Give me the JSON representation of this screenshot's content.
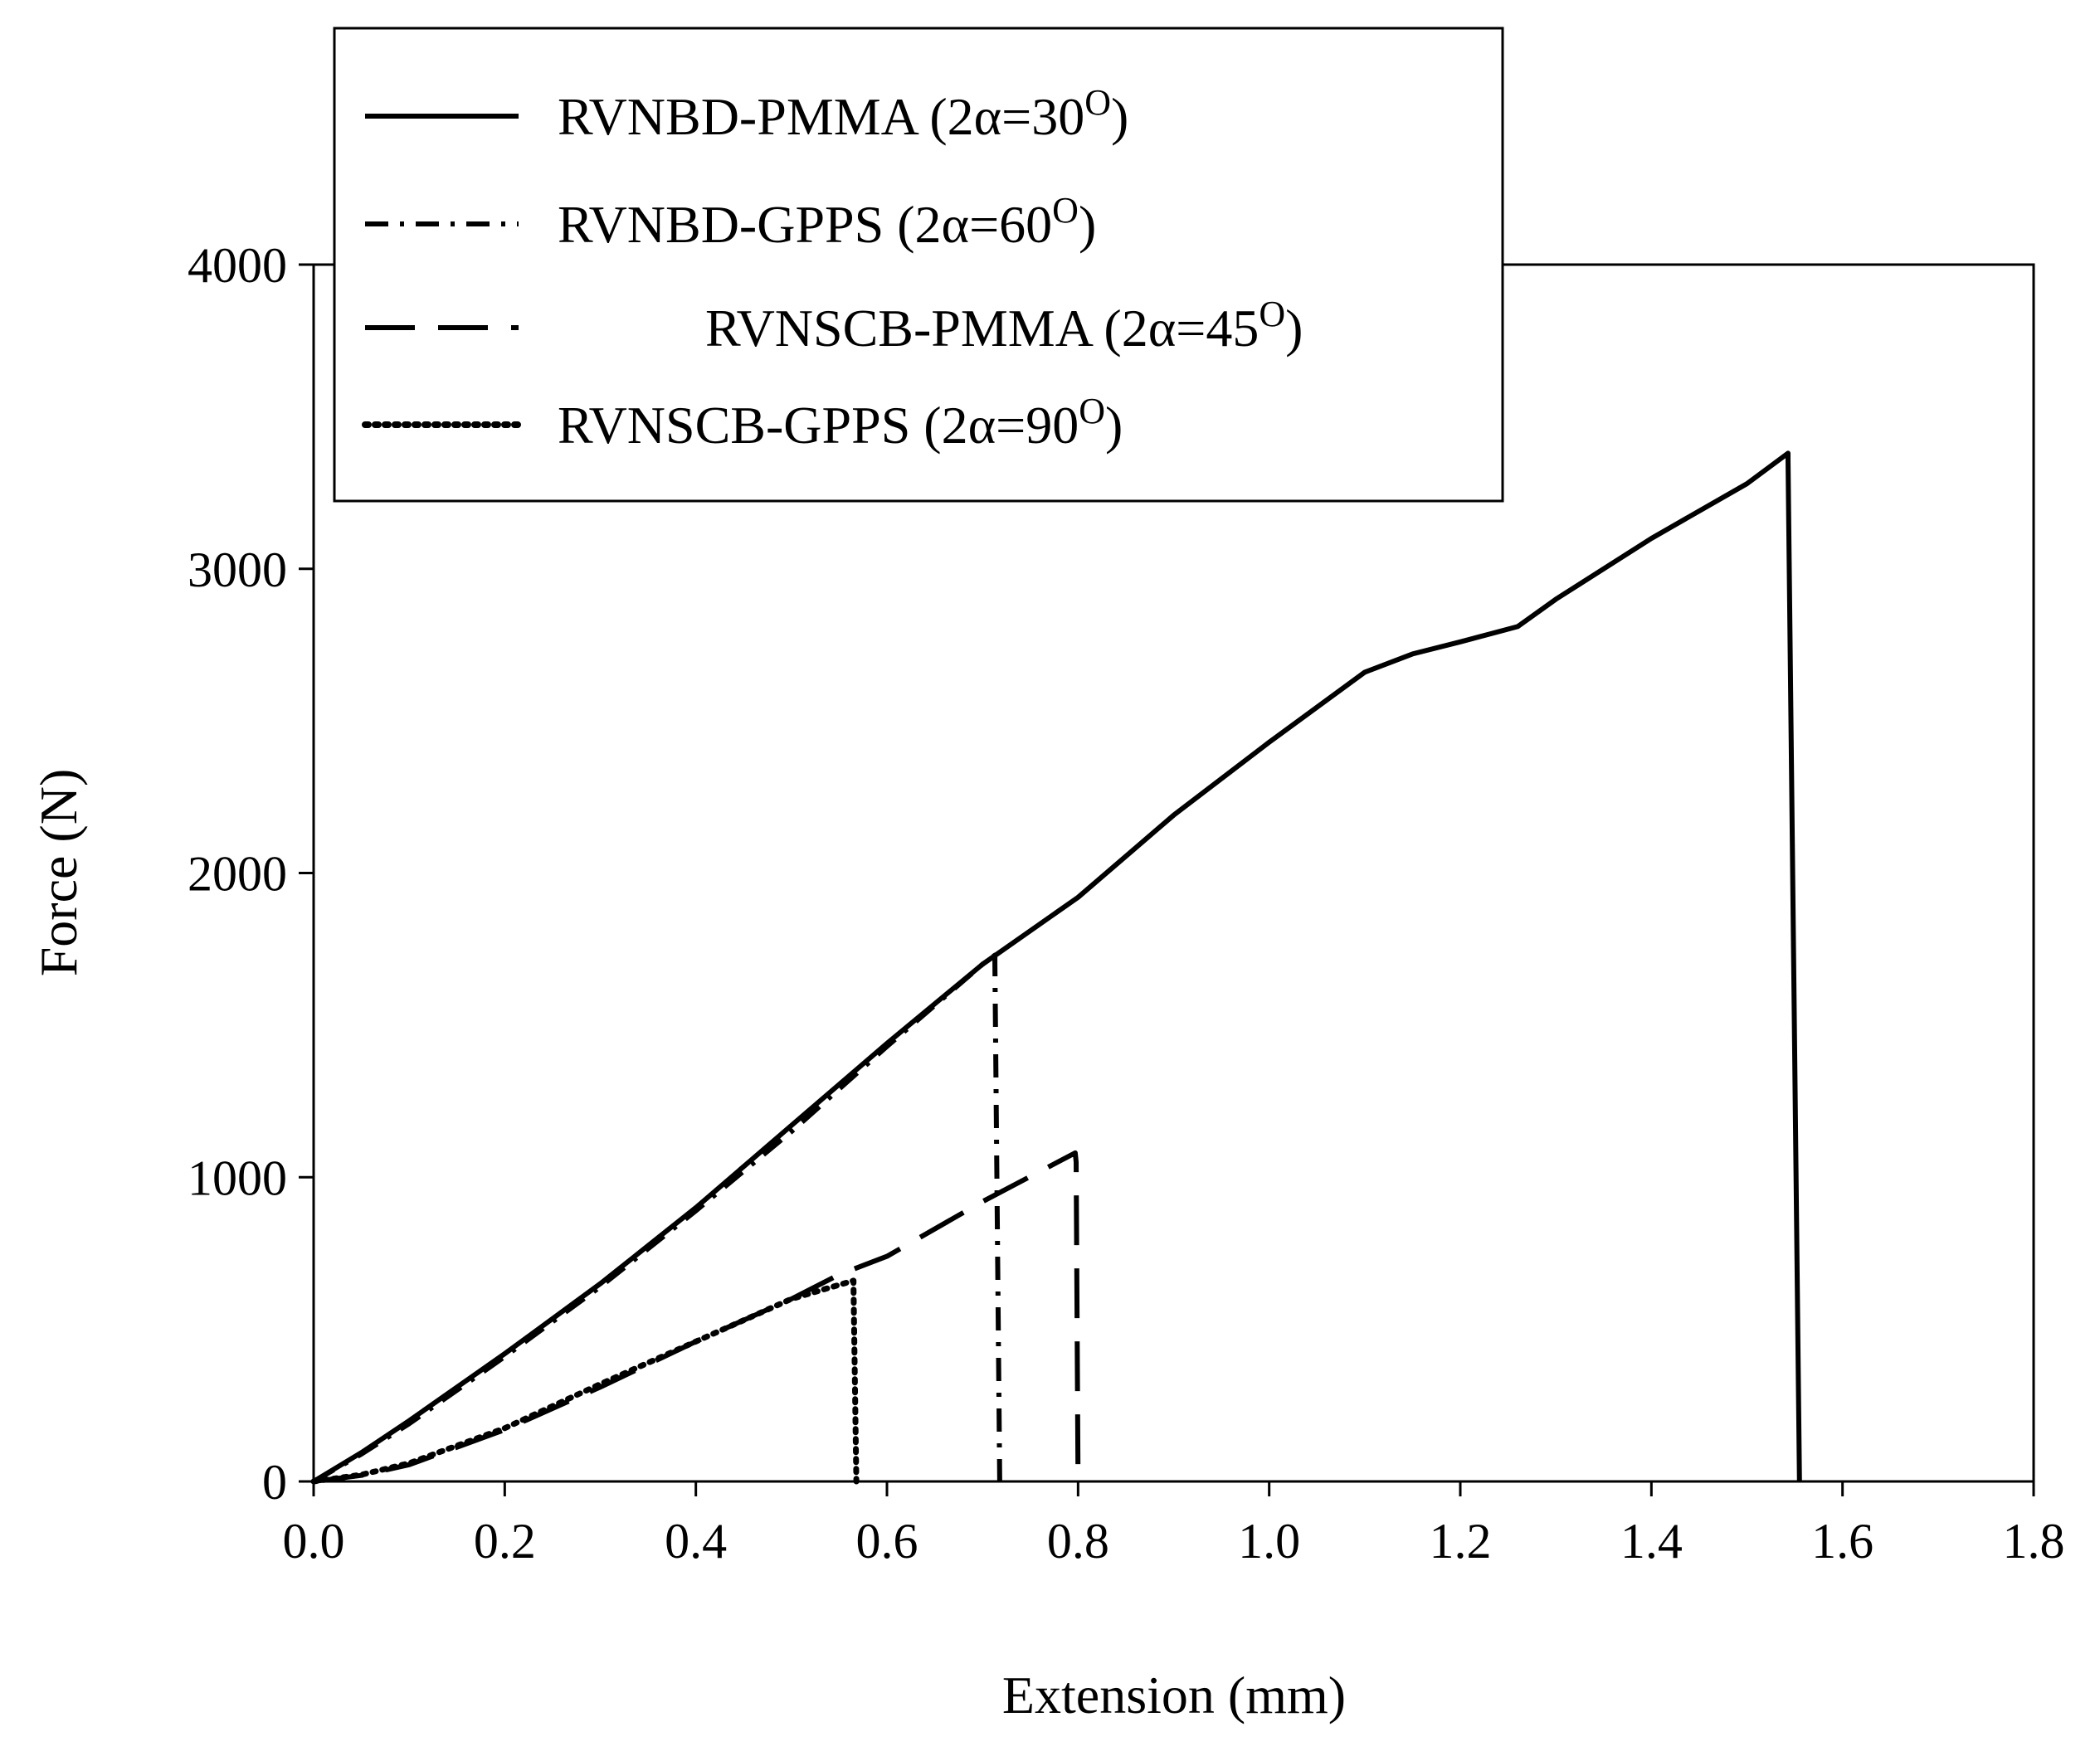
{
  "chart_data": {
    "type": "line",
    "title": "",
    "xlabel": "Extension (mm)",
    "ylabel": "Force (N)",
    "xlim": [
      0,
      1.8
    ],
    "ylim": [
      0,
      4000
    ],
    "x_ticks": [
      0.0,
      0.2,
      0.4,
      0.6,
      0.8,
      1.0,
      1.2,
      1.4,
      1.6,
      1.8
    ],
    "x_tick_labels": [
      "0.0",
      "0.2",
      "0.4",
      "0.6",
      "0.8",
      "1.0",
      "1.2",
      "1.4",
      "1.6",
      "1.8"
    ],
    "y_ticks": [
      0,
      1000,
      2000,
      3000,
      4000
    ],
    "y_tick_labels": [
      "0",
      "1000",
      "2000",
      "3000",
      "4000"
    ],
    "grid": false,
    "legend_position": "top-left",
    "series": [
      {
        "name": "RVNBD-PMMA (2α=30",
        "sup": "O",
        "close": ")",
        "style": "solid",
        "points": [
          [
            0,
            0
          ],
          [
            0.05,
            95
          ],
          [
            0.1,
            200
          ],
          [
            0.2,
            420
          ],
          [
            0.3,
            650
          ],
          [
            0.4,
            900
          ],
          [
            0.5,
            1170
          ],
          [
            0.6,
            1440
          ],
          [
            0.7,
            1700
          ],
          [
            0.8,
            1920
          ],
          [
            0.9,
            2190
          ],
          [
            1.0,
            2430
          ],
          [
            1.1,
            2660
          ],
          [
            1.15,
            2720
          ],
          [
            1.2,
            2760
          ],
          [
            1.26,
            2810
          ],
          [
            1.3,
            2900
          ],
          [
            1.4,
            3100
          ],
          [
            1.5,
            3280
          ],
          [
            1.543,
            3380
          ],
          [
            1.543,
            3360
          ],
          [
            1.555,
            0
          ]
        ]
      },
      {
        "name": "RVNBD-GPPS (2α=60",
        "sup": "O",
        "close": ")",
        "style": "dashdot",
        "points": [
          [
            0,
            0
          ],
          [
            0.05,
            90
          ],
          [
            0.1,
            190
          ],
          [
            0.2,
            410
          ],
          [
            0.3,
            640
          ],
          [
            0.4,
            890
          ],
          [
            0.5,
            1150
          ],
          [
            0.6,
            1430
          ],
          [
            0.7,
            1700
          ],
          [
            0.713,
            1730
          ],
          [
            0.713,
            1700
          ],
          [
            0.718,
            0
          ]
        ]
      },
      {
        "name": "RVNSCB-PMMA (2α=45",
        "sup": "O",
        "close": ")",
        "style": "longdash",
        "points": [
          [
            0,
            0
          ],
          [
            0.05,
            20
          ],
          [
            0.1,
            55
          ],
          [
            0.2,
            170
          ],
          [
            0.3,
            310
          ],
          [
            0.4,
            460
          ],
          [
            0.5,
            600
          ],
          [
            0.55,
            680
          ],
          [
            0.6,
            740
          ],
          [
            0.7,
            920
          ],
          [
            0.797,
            1080
          ],
          [
            0.798,
            1050
          ],
          [
            0.8,
            0
          ]
        ]
      },
      {
        "name": "RVNSCB-GPPS (2α=90",
        "sup": "O",
        "close": ")",
        "style": "dotted",
        "points": [
          [
            0,
            0
          ],
          [
            0.05,
            22
          ],
          [
            0.1,
            60
          ],
          [
            0.2,
            175
          ],
          [
            0.3,
            320
          ],
          [
            0.4,
            460
          ],
          [
            0.5,
            600
          ],
          [
            0.565,
            660
          ],
          [
            0.565,
            640
          ],
          [
            0.568,
            0
          ]
        ]
      }
    ]
  }
}
